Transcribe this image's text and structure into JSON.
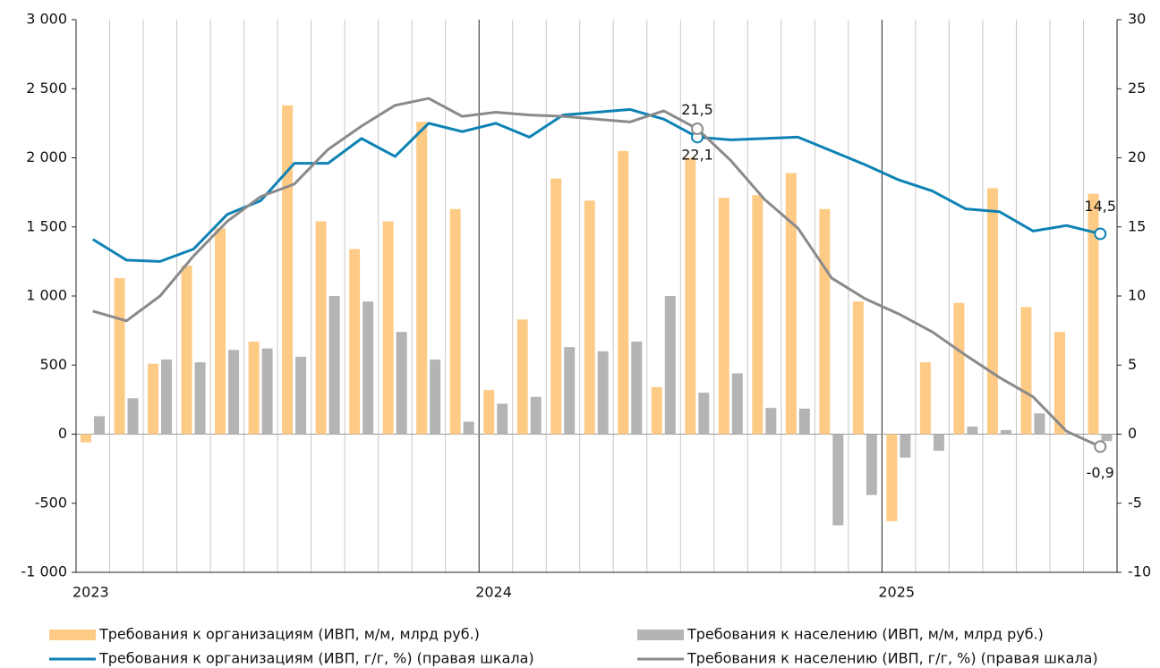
{
  "chart_data": {
    "type": "bar",
    "categories": [
      "2023",
      null,
      null,
      null,
      null,
      null,
      null,
      null,
      null,
      null,
      null,
      null,
      "2024",
      null,
      null,
      null,
      null,
      null,
      null,
      null,
      null,
      null,
      null,
      null,
      "2025",
      null,
      null,
      null,
      null,
      null,
      null
    ],
    "series": [
      {
        "name": "Требования к организациям (ИВП, м/м, млрд руб.)",
        "type": "bar",
        "color": "#fecb87",
        "values": [
          -60,
          1130,
          510,
          1220,
          1490,
          670,
          2380,
          1540,
          1340,
          1540,
          2260,
          1630,
          320,
          830,
          1850,
          1690,
          2050,
          340,
          2000,
          1710,
          1730,
          1890,
          1630,
          960,
          -630,
          520,
          950,
          1780,
          920,
          740,
          1740
        ]
      },
      {
        "name": "Требования к населению (ИВП, м/м, млрд руб.)",
        "type": "bar",
        "color": "#b4b4b4",
        "values": [
          130,
          260,
          540,
          520,
          610,
          620,
          560,
          1000,
          960,
          740,
          540,
          90,
          220,
          270,
          630,
          600,
          670,
          1000,
          300,
          440,
          190,
          185,
          -660,
          -440,
          -170,
          -120,
          55,
          30,
          150,
          5,
          -50
        ]
      },
      {
        "name": "Требования к организациям (ИВП, г/г, %) (правая шкала)",
        "type": "line",
        "axis": "y2",
        "color": "#0e82b4",
        "values": [
          14.1,
          12.6,
          12.5,
          13.4,
          15.9,
          16.9,
          19.6,
          19.6,
          21.4,
          20.1,
          22.5,
          21.9,
          22.5,
          21.5,
          23.1,
          23.3,
          23.5,
          22.8,
          21.5,
          21.3,
          21.4,
          21.5,
          20.5,
          19.5,
          18.4,
          17.6,
          16.3,
          16.1,
          14.7,
          15.1,
          14.5
        ],
        "value_labels": [
          null,
          null,
          null,
          null,
          null,
          null,
          null,
          null,
          null,
          null,
          null,
          null,
          null,
          null,
          null,
          null,
          null,
          null,
          "21,5",
          null,
          null,
          null,
          null,
          null,
          null,
          null,
          null,
          null,
          null,
          null,
          "14,5"
        ]
      },
      {
        "name": "Требования к населению (ИВП, г/г, %) (правая шкала)",
        "type": "line",
        "axis": "y2",
        "color": "#8a8a8a",
        "values": [
          8.9,
          8.2,
          10.0,
          12.9,
          15.4,
          17.2,
          18.1,
          20.6,
          22.3,
          23.8,
          24.3,
          23.0,
          23.3,
          23.1,
          23.0,
          22.8,
          22.6,
          23.4,
          22.1,
          19.8,
          17.0,
          14.9,
          11.3,
          9.8,
          8.7,
          7.4,
          5.7,
          4.1,
          2.7,
          0.2,
          -0.9
        ],
        "value_labels": [
          null,
          null,
          null,
          null,
          null,
          null,
          null,
          null,
          null,
          null,
          null,
          null,
          null,
          null,
          null,
          null,
          null,
          null,
          "22,1",
          null,
          null,
          null,
          null,
          null,
          null,
          null,
          null,
          null,
          null,
          null,
          "-0,9"
        ]
      }
    ],
    "ylim": [
      -1000,
      3000
    ],
    "yticks": [
      {
        "value": -1000,
        "label": "-1 000"
      },
      -500,
      0,
      500,
      {
        "value": 1000,
        "label": "1 000"
      },
      {
        "value": 1500,
        "label": "1 500"
      },
      {
        "value": 2000,
        "label": "2 000"
      },
      {
        "value": 2500,
        "label": "2 500"
      },
      {
        "value": 3000,
        "label": "3 000"
      }
    ],
    "y2lim": [
      -10,
      30
    ],
    "y2ticks": [
      -10,
      -5,
      0,
      5,
      10,
      15,
      20,
      25,
      30
    ],
    "grid": true
  }
}
